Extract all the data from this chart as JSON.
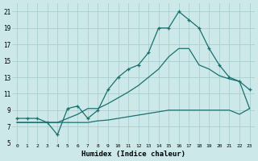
{
  "xlabel": "Humidex (Indice chaleur)",
  "bg_color": "#cce8e8",
  "grid_color": "#aacfcf",
  "line_color": "#1a7070",
  "xlim": [
    -0.5,
    23.5
  ],
  "ylim": [
    5,
    22
  ],
  "yticks": [
    5,
    7,
    9,
    11,
    13,
    15,
    17,
    19,
    21
  ],
  "xticks": [
    0,
    1,
    2,
    3,
    4,
    5,
    6,
    7,
    8,
    9,
    10,
    11,
    12,
    13,
    14,
    15,
    16,
    17,
    18,
    19,
    20,
    21,
    22,
    23
  ],
  "line_top_x": [
    0,
    1,
    2,
    3,
    4,
    5,
    6,
    7,
    8,
    9,
    10,
    11,
    12,
    13,
    14,
    15,
    16,
    17,
    18,
    19,
    20,
    21,
    22,
    23
  ],
  "line_top_y": [
    8.0,
    8.0,
    8.0,
    7.5,
    6.0,
    9.2,
    9.5,
    8.0,
    9.0,
    11.5,
    13.0,
    14.0,
    14.5,
    16.0,
    19.0,
    19.0,
    21.0,
    20.0,
    19.0,
    16.5,
    14.5,
    13.0,
    12.5,
    11.5
  ],
  "line_mid_x": [
    0,
    1,
    2,
    3,
    4,
    5,
    6,
    7,
    8,
    9,
    10,
    11,
    12,
    13,
    14,
    15,
    16,
    17,
    18,
    19,
    20,
    21,
    22,
    23
  ],
  "line_mid_y": [
    7.5,
    7.5,
    7.5,
    7.5,
    7.5,
    8.0,
    8.5,
    9.2,
    9.2,
    9.8,
    10.5,
    11.2,
    12.0,
    13.0,
    14.0,
    15.5,
    16.5,
    16.5,
    14.5,
    14.0,
    13.2,
    12.8,
    12.5,
    9.2
  ],
  "line_bot_x": [
    0,
    1,
    2,
    3,
    4,
    5,
    6,
    7,
    8,
    9,
    10,
    11,
    12,
    13,
    14,
    15,
    16,
    17,
    18,
    19,
    20,
    21,
    22,
    23
  ],
  "line_bot_y": [
    7.5,
    7.5,
    7.5,
    7.5,
    7.5,
    7.5,
    7.5,
    7.5,
    7.7,
    7.8,
    8.0,
    8.2,
    8.4,
    8.6,
    8.8,
    9.0,
    9.0,
    9.0,
    9.0,
    9.0,
    9.0,
    9.0,
    8.5,
    9.2
  ]
}
